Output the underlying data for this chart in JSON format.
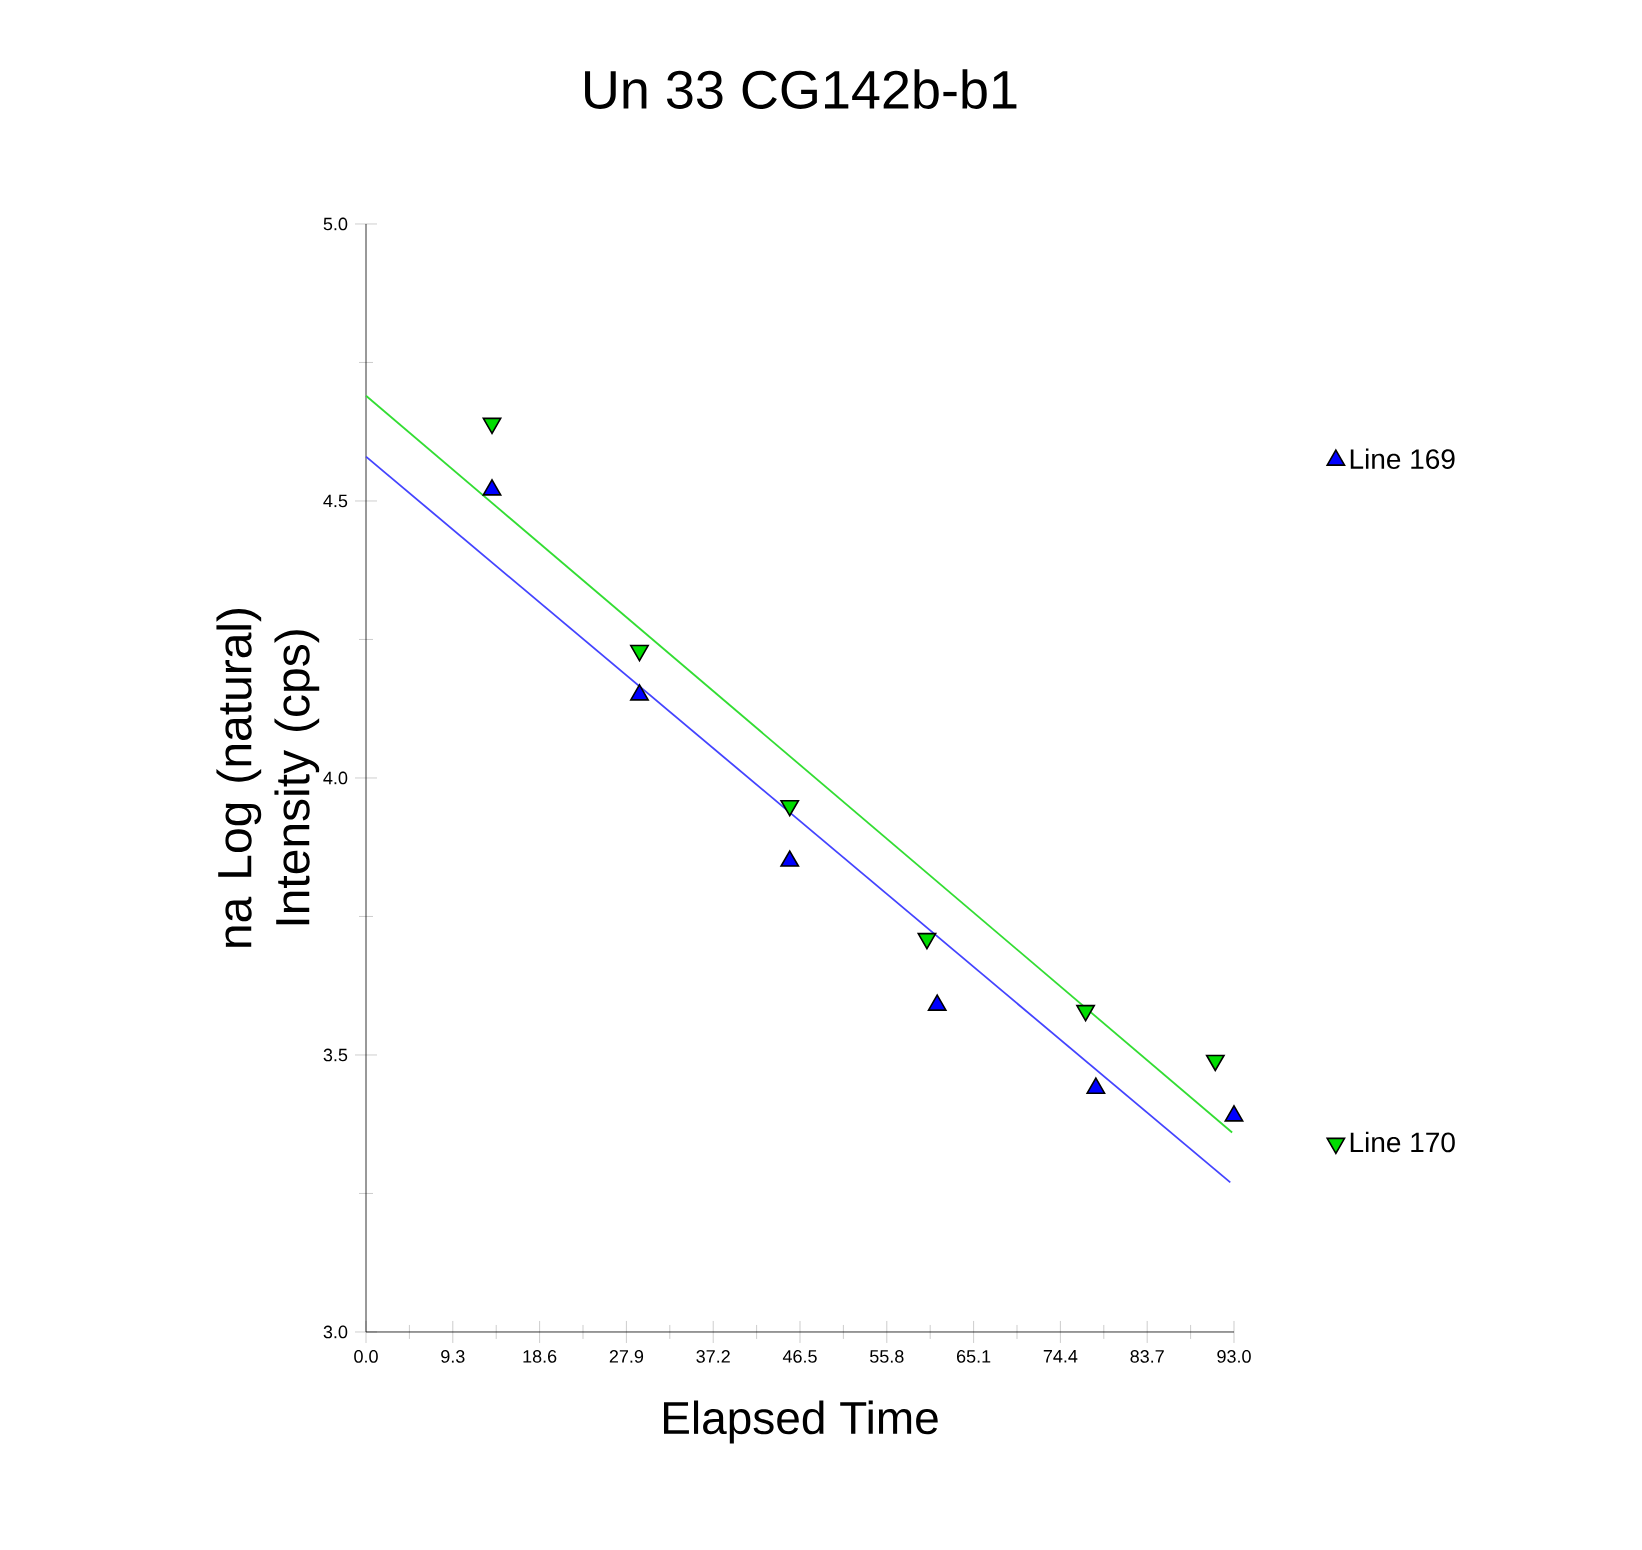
{
  "chart_data": {
    "type": "scatter",
    "title": "Un   33  CG142b-b1",
    "xlabel": "Elapsed Time",
    "ylabel": "na Log (natural) Intensity (cps)",
    "xlim": [
      0,
      93
    ],
    "ylim": [
      3,
      5
    ],
    "xticks": [
      {
        "value": 0,
        "label": "0.0"
      },
      {
        "value": 4.65,
        "label": null
      },
      9.3,
      {
        "value": 13.95,
        "label": null
      },
      18.6,
      {
        "value": 23.25,
        "label": null
      },
      27.9,
      {
        "value": 32.55,
        "label": null
      },
      37.2,
      {
        "value": 41.85,
        "label": null
      },
      46.5,
      {
        "value": 51.15,
        "label": null
      },
      55.8,
      {
        "value": 60.45,
        "label": null
      },
      65.1,
      {
        "value": 69.75,
        "label": null
      },
      74.4,
      {
        "value": 79.05,
        "label": null
      },
      83.7,
      {
        "value": 88.35,
        "label": null
      },
      {
        "value": 93,
        "label": "93.0"
      }
    ],
    "yticks": [
      {
        "value": 3,
        "label": "3.0"
      },
      {
        "value": 3.25,
        "label": null
      },
      3.5,
      {
        "value": 3.75,
        "label": null
      },
      {
        "value": 4,
        "label": "4.0"
      },
      {
        "value": 4.25,
        "label": null
      },
      4.5,
      {
        "value": 4.75,
        "label": null
      },
      {
        "value": 5,
        "label": "5.0"
      }
    ],
    "legend": "right",
    "series": [
      {
        "name": "Line 169",
        "marker": "triangle",
        "color": "#0000ff",
        "x": [
          13.5,
          29.3,
          45.4,
          61.2,
          78.2,
          93.0
        ],
        "values": [
          4.52,
          4.15,
          3.85,
          3.59,
          3.44,
          3.39
        ]
      },
      {
        "name": "Line 170",
        "marker": "triangle-down",
        "color": "#00dd00",
        "x": [
          13.5,
          29.3,
          45.4,
          60.1,
          77.1,
          91.0
        ],
        "values": [
          4.64,
          4.23,
          3.95,
          3.71,
          3.58,
          3.49
        ]
      },
      {
        "type": "line",
        "marker": "none",
        "color": "#4444ff",
        "x": [
          0,
          92.6
        ],
        "values": [
          4.58,
          3.27
        ]
      },
      {
        "type": "line",
        "marker": "none",
        "color": "#33dd33",
        "x": [
          0,
          92.8
        ],
        "values": [
          4.69,
          3.36
        ]
      }
    ]
  }
}
